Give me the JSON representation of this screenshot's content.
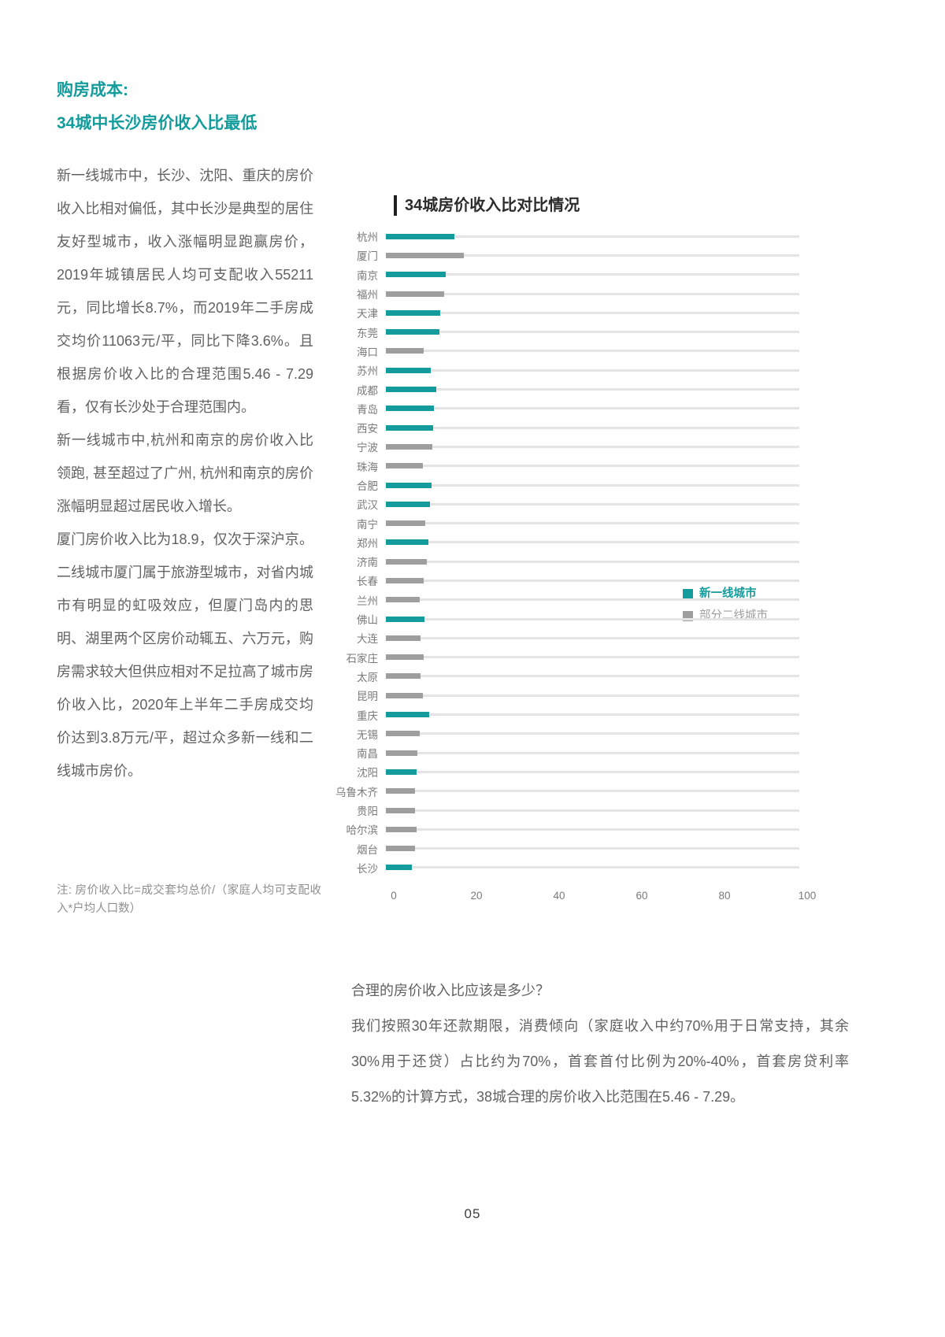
{
  "theme": {
    "accent": "#149c9c",
    "secondary_bar": "#9e9e9e"
  },
  "header": {
    "title_line1": "购房成本:",
    "title_line2": "34城中长沙房价收入比最低"
  },
  "article": {
    "paragraphs": [
      "新一线城市中，长沙、沈阳、重庆的房价收入比相对偏低，其中长沙是典型的居住友好型城市，收入涨幅明显跑赢房价，2019年城镇居民人均可支配收入55211元，同比增长8.7%，而2019年二手房成交均价11063元/平，同比下降3.6%。且根据房价收入比的合理范围5.46 - 7.29看，仅有长沙处于合理范围内。",
      "新一线城市中,杭州和南京的房价收入比领跑, 甚至超过了广州, 杭州和南京的房价涨幅明显超过居民收入增长。",
      "厦门房价收入比为18.9，仅次于深沪京。二线城市厦门属于旅游型城市，对省内城市有明显的虹吸效应，但厦门岛内的思明、湖里两个区房价动辄五、六万元，购房需求较大但供应相对不足拉高了城市房价收入比，2020年上半年二手房成交均价达到3.8万元/平，超过众多新一线和二线城市房价。"
    ],
    "note": "注: 房价收入比=成交套均总价/（家庭人均可支配收入*户均人口数）"
  },
  "chart_data": {
    "type": "bar",
    "orientation": "horizontal",
    "title": "34城房价收入比对比情况",
    "xlabel": "",
    "ylabel": "",
    "xlim": [
      0,
      100
    ],
    "x_ticks": [
      0,
      20,
      40,
      60,
      80,
      100
    ],
    "grid": "row-tracks",
    "legend_position": "right-middle",
    "legend": [
      {
        "label": "新一线城市",
        "color": "#149c9c"
      },
      {
        "label": "部分二线城市",
        "color": "#9e9e9e"
      }
    ],
    "cities": [
      {
        "name": "杭州",
        "value": 16.5,
        "group": "新一线城市"
      },
      {
        "name": "厦门",
        "value": 18.9,
        "group": "部分二线城市"
      },
      {
        "name": "南京",
        "value": 14.5,
        "group": "新一线城市"
      },
      {
        "name": "福州",
        "value": 14.0,
        "group": "部分二线城市"
      },
      {
        "name": "天津",
        "value": 13.2,
        "group": "新一线城市"
      },
      {
        "name": "东莞",
        "value": 13.0,
        "group": "新一线城市"
      },
      {
        "name": "海口",
        "value": 9.2,
        "group": "部分二线城市"
      },
      {
        "name": "苏州",
        "value": 10.8,
        "group": "新一线城市"
      },
      {
        "name": "成都",
        "value": 12.2,
        "group": "新一线城市"
      },
      {
        "name": "青岛",
        "value": 11.6,
        "group": "新一线城市"
      },
      {
        "name": "西安",
        "value": 11.5,
        "group": "新一线城市"
      },
      {
        "name": "宁波",
        "value": 11.2,
        "group": "部分二线城市"
      },
      {
        "name": "珠海",
        "value": 9.0,
        "group": "部分二线城市"
      },
      {
        "name": "合肥",
        "value": 11.0,
        "group": "新一线城市"
      },
      {
        "name": "武汉",
        "value": 10.6,
        "group": "新一线城市"
      },
      {
        "name": "南宁",
        "value": 9.6,
        "group": "部分二线城市"
      },
      {
        "name": "郑州",
        "value": 10.2,
        "group": "新一线城市"
      },
      {
        "name": "济南",
        "value": 9.8,
        "group": "部分二线城市"
      },
      {
        "name": "长春",
        "value": 9.2,
        "group": "部分二线城市"
      },
      {
        "name": "兰州",
        "value": 8.2,
        "group": "部分二线城市"
      },
      {
        "name": "佛山",
        "value": 9.4,
        "group": "新一线城市"
      },
      {
        "name": "大连",
        "value": 8.4,
        "group": "部分二线城市"
      },
      {
        "name": "石家庄",
        "value": 9.2,
        "group": "部分二线城市"
      },
      {
        "name": "太原",
        "value": 8.4,
        "group": "部分二线城市"
      },
      {
        "name": "昆明",
        "value": 9.0,
        "group": "部分二线城市"
      },
      {
        "name": "重庆",
        "value": 10.4,
        "group": "新一线城市"
      },
      {
        "name": "无锡",
        "value": 8.2,
        "group": "部分二线城市"
      },
      {
        "name": "南昌",
        "value": 7.6,
        "group": "部分二线城市"
      },
      {
        "name": "沈阳",
        "value": 7.4,
        "group": "新一线城市"
      },
      {
        "name": "乌鲁木齐",
        "value": 7.0,
        "group": "部分二线城市"
      },
      {
        "name": "贵阳",
        "value": 7.0,
        "group": "部分二线城市"
      },
      {
        "name": "哈尔滨",
        "value": 7.4,
        "group": "部分二线城市"
      },
      {
        "name": "烟台",
        "value": 7.0,
        "group": "部分二线城市"
      },
      {
        "name": "长沙",
        "value": 6.2,
        "group": "新一线城市"
      }
    ]
  },
  "qa": {
    "question": "合理的房价收入比应该是多少？",
    "answer": "我们按照30年还款期限，消费倾向（家庭收入中约70%用于日常支持，其余30%用于还贷）占比约为70%，首套首付比例为20%-40%，首套房贷利率5.32%的计算方式，38城合理的房价收入比范围在5.46 - 7.29。"
  },
  "footer": {
    "page_number": "05"
  }
}
